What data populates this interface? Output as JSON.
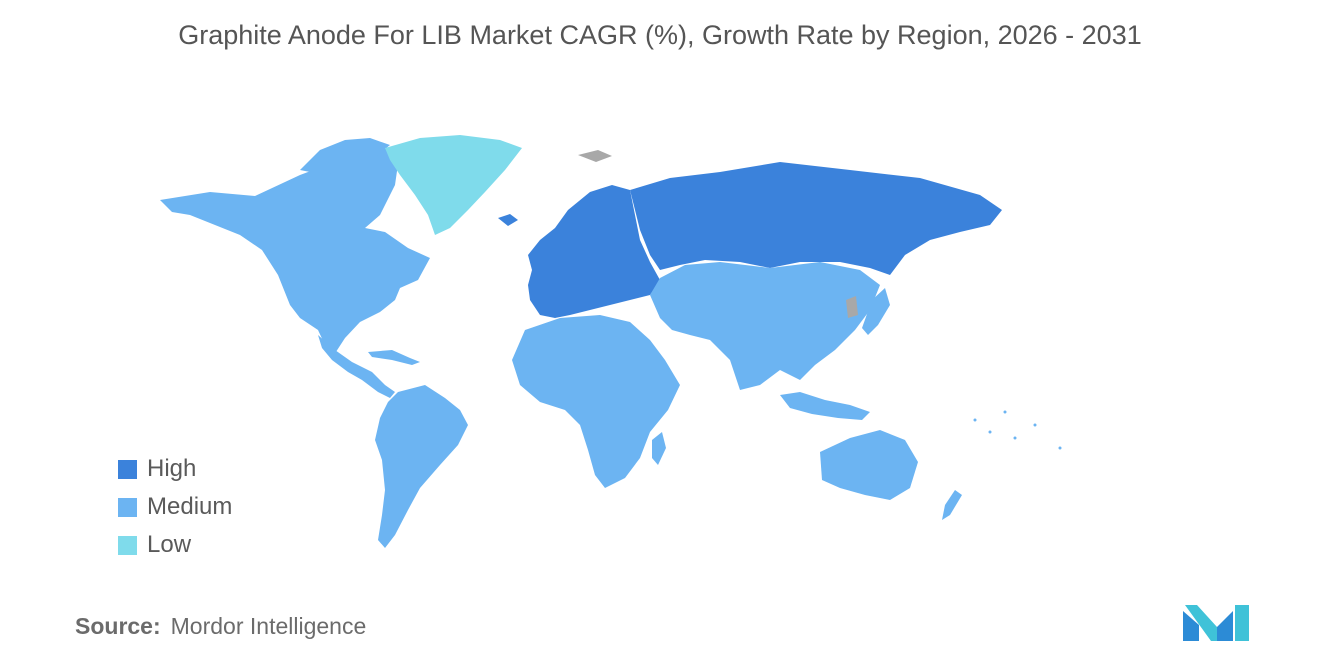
{
  "title": "Graphite Anode For LIB Market CAGR (%), Growth Rate by Region, 2026 - 2031",
  "colors": {
    "high": "#3b82db",
    "medium": "#6cb4f2",
    "low": "#7fdbeb",
    "no_data": "#a8a8a8"
  },
  "legend": [
    {
      "label": "High",
      "color": "#3b82db"
    },
    {
      "label": "Medium",
      "color": "#6cb4f2"
    },
    {
      "label": "Low",
      "color": "#7fdbeb"
    }
  ],
  "source": {
    "label": "Source:",
    "value": "Mordor Intelligence"
  },
  "logo": {
    "icon": "mordor-intelligence-logo-icon"
  }
}
